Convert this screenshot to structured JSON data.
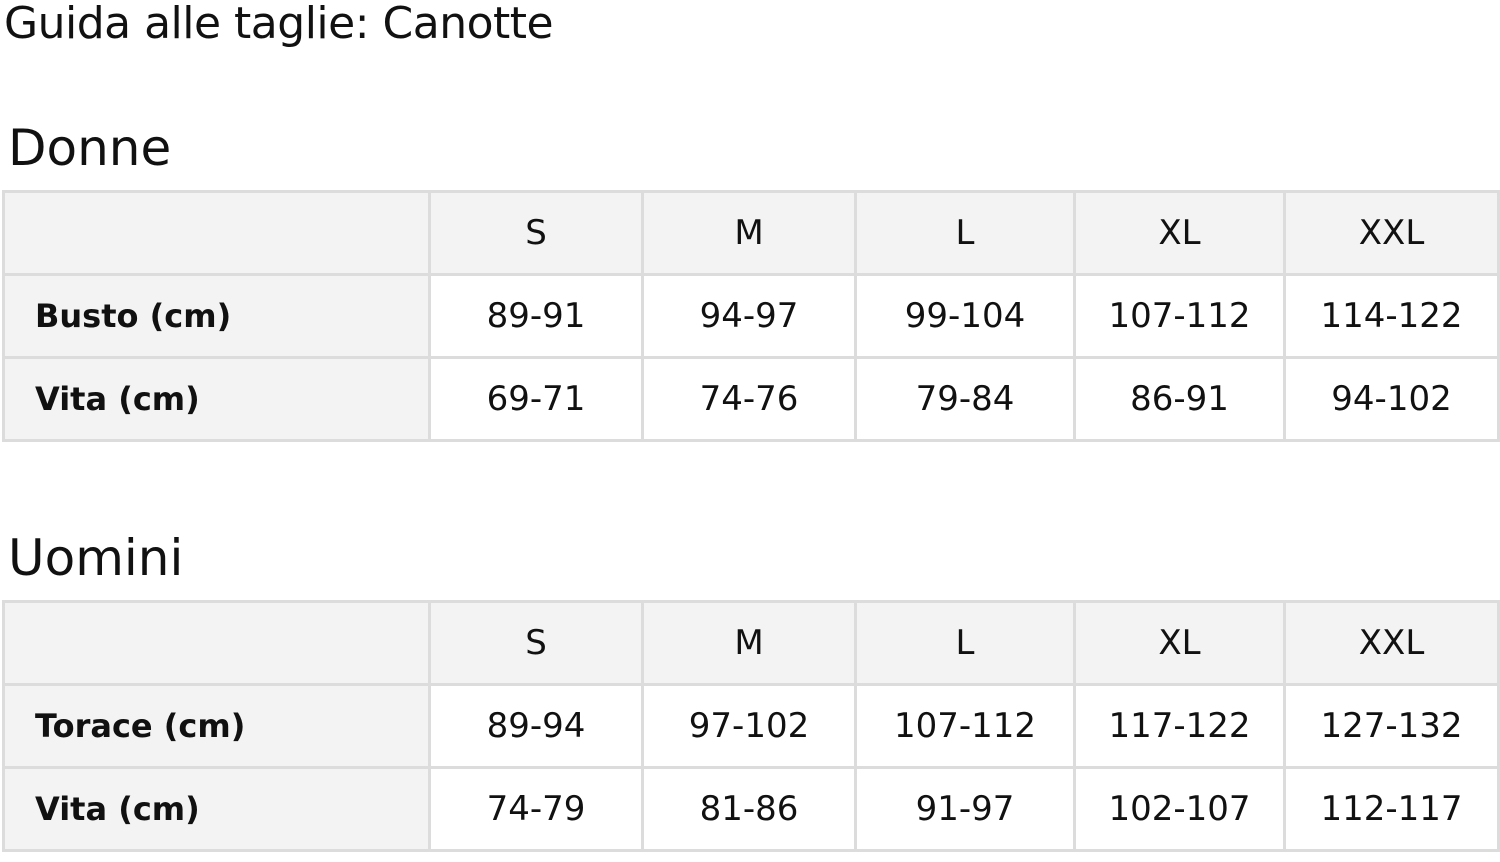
{
  "title": "Guida alle taglie: Canotte",
  "tables": [
    {
      "heading": "Donne",
      "sizes": [
        "S",
        "M",
        "L",
        "XL",
        "XXL"
      ],
      "rows": [
        {
          "label": "Busto (cm)",
          "values": [
            "89-91",
            "94-97",
            "99-104",
            "107-112",
            "114-122"
          ]
        },
        {
          "label": "Vita (cm)",
          "values": [
            "69-71",
            "74-76",
            "79-84",
            "86-91",
            "94-102"
          ]
        }
      ]
    },
    {
      "heading": "Uomini",
      "sizes": [
        "S",
        "M",
        "L",
        "XL",
        "XXL"
      ],
      "rows": [
        {
          "label": "Torace (cm)",
          "values": [
            "89-94",
            "97-102",
            "107-112",
            "117-122",
            "127-132"
          ]
        },
        {
          "label": "Vita (cm)",
          "values": [
            "74-79",
            "81-86",
            "91-97",
            "102-107",
            "112-117"
          ]
        }
      ]
    }
  ]
}
